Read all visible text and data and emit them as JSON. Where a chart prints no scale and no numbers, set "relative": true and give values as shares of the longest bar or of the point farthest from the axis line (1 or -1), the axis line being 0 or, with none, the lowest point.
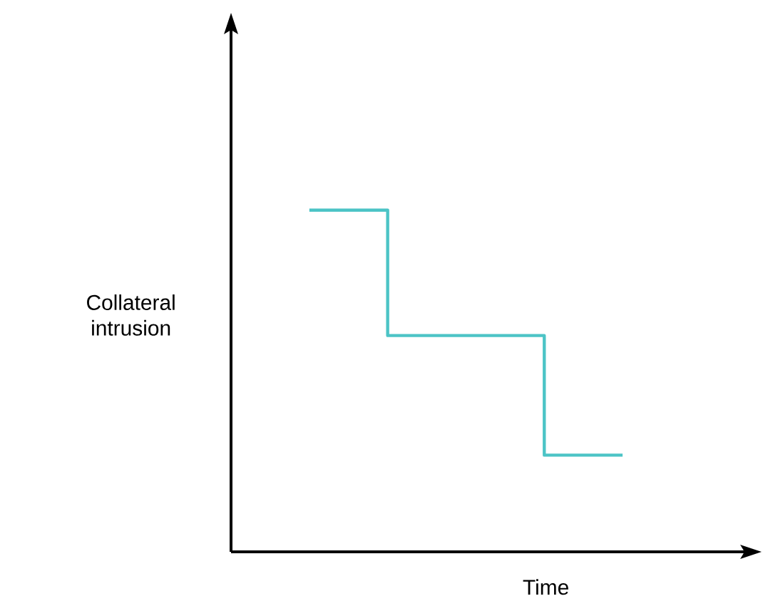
{
  "chart_data": {
    "type": "step",
    "relative": true,
    "xlabel": "Time",
    "ylabel": "Collateral intrusion",
    "categories": [
      null,
      null,
      null
    ],
    "series": [
      {
        "color": "#4cc4c6",
        "values": [
          1,
          0.633,
          0.283
        ]
      }
    ],
    "marker": "none",
    "line_style": "solid"
  }
}
